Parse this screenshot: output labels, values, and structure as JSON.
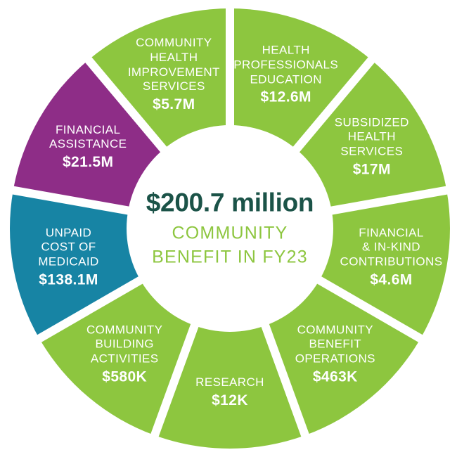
{
  "chart_data": {
    "type": "pie",
    "variant": "donut",
    "title": "$200.7 million COMMUNITY BENEFIT IN FY23",
    "legend_position": "labels-on-segments",
    "units": "USD",
    "equal_angle_segments": true,
    "total": {
      "label": "$200.7 million",
      "value_millions": 200.7
    },
    "center": {
      "title": "$200.7 million",
      "subtitle_line1": "COMMUNITY",
      "subtitle_line2": "BENEFIT IN FY23"
    },
    "palette": {
      "green": "#8dc63f",
      "teal": "#1784a4",
      "purple": "#8e2d87",
      "center_title": "#1b5348",
      "center_subtitle": "#8dc63f",
      "label_text": "#ffffff",
      "background": "#ffffff"
    },
    "segments": [
      {
        "id": "health-professionals-education",
        "label": "HEALTH PROFESSIONALS EDUCATION",
        "label_lines": [
          "HEALTH",
          "PROFESSIONALS",
          "EDUCATION"
        ],
        "value_label": "$12.6M",
        "value_millions": 12.6,
        "color": "#8dc63f"
      },
      {
        "id": "subsidized-health-services",
        "label": "SUBSIDIZED HEALTH SERVICES",
        "label_lines": [
          "SUBSIDIZED",
          "HEALTH",
          "SERVICES"
        ],
        "value_label": "$17M",
        "value_millions": 17,
        "color": "#8dc63f"
      },
      {
        "id": "financial-in-kind-contributions",
        "label": "FINANCIAL & IN-KIND CONTRIBUTIONS",
        "label_lines": [
          "FINANCIAL",
          "& IN-KIND",
          "CONTRIBUTIONS"
        ],
        "value_label": "$4.6M",
        "value_millions": 4.6,
        "color": "#8dc63f"
      },
      {
        "id": "community-benefit-operations",
        "label": "COMMUNITY BENEFIT OPERATIONS",
        "label_lines": [
          "COMMUNITY",
          "BENEFIT",
          "OPERATIONS"
        ],
        "value_label": "$463K",
        "value_millions": 0.463,
        "color": "#8dc63f"
      },
      {
        "id": "research",
        "label": "RESEARCH",
        "label_lines": [
          "RESEARCH"
        ],
        "value_label": "$12K",
        "value_millions": 0.012,
        "color": "#8dc63f"
      },
      {
        "id": "community-building-activities",
        "label": "COMMUNITY BUILDING ACTIVITIES",
        "label_lines": [
          "COMMUNITY",
          "BUILDING",
          "ACTIVITIES"
        ],
        "value_label": "$580K",
        "value_millions": 0.58,
        "color": "#8dc63f"
      },
      {
        "id": "unpaid-cost-of-medicaid",
        "label": "UNPAID COST OF MEDICAID",
        "label_lines": [
          "UNPAID",
          "COST OF",
          "MEDICAID"
        ],
        "value_label": "$138.1M",
        "value_millions": 138.1,
        "color": "#1784a4"
      },
      {
        "id": "financial-assistance",
        "label": "FINANCIAL ASSISTANCE",
        "label_lines": [
          "FINANCIAL",
          "ASSISTANCE"
        ],
        "value_label": "$21.5M",
        "value_millions": 21.5,
        "color": "#8e2d87"
      },
      {
        "id": "community-health-improvement-services",
        "label": "COMMUNITY HEALTH IMPROVEMENT SERVICES",
        "label_lines": [
          "COMMUNITY",
          "HEALTH",
          "IMPROVEMENT",
          "SERVICES"
        ],
        "value_label": "$5.7M",
        "value_millions": 5.7,
        "color": "#8dc63f"
      }
    ]
  }
}
